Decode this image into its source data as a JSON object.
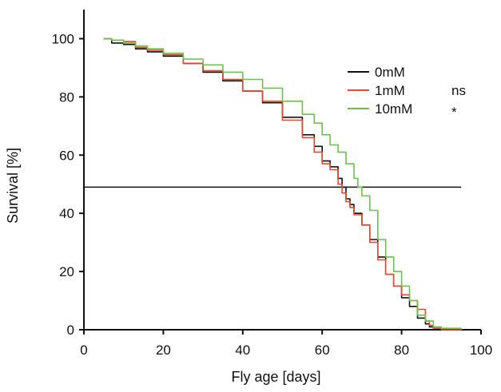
{
  "chart_data": {
    "type": "line",
    "xlabel": "Fly age [days]",
    "ylabel": "Survival [%]",
    "xlim": [
      0,
      100
    ],
    "ylim": [
      0,
      110
    ],
    "xticks": [
      0,
      20,
      40,
      60,
      80,
      100
    ],
    "yticks": [
      0,
      20,
      40,
      60,
      80,
      100
    ],
    "grid": false,
    "legend_position": "top-right",
    "reference_line": {
      "y": 49,
      "x_start": 0,
      "x_end": 95
    },
    "series": [
      {
        "name": "0mM",
        "annotation": "",
        "color": "#111111",
        "x": [
          5,
          7,
          10,
          13,
          16,
          20,
          25,
          30,
          35,
          40,
          45,
          50,
          55,
          58,
          60,
          62,
          64,
          65,
          66,
          67,
          68,
          70,
          72,
          74,
          76,
          78,
          80,
          82,
          84,
          86,
          87,
          88,
          90,
          95
        ],
        "y": [
          100,
          98.5,
          98,
          96.5,
          95.5,
          94,
          91.5,
          88.5,
          85.5,
          82,
          78,
          73,
          67,
          63,
          58,
          56,
          52,
          49,
          45,
          43,
          40,
          36,
          31,
          25,
          19,
          15,
          11,
          8,
          4,
          2,
          1,
          0.5,
          0,
          0
        ]
      },
      {
        "name": "1mM",
        "annotation": "ns",
        "color": "#e8482c",
        "x": [
          5,
          7,
          10,
          13,
          16,
          20,
          25,
          30,
          35,
          40,
          45,
          50,
          55,
          58,
          60,
          62,
          64,
          65,
          66,
          67,
          68,
          70,
          72,
          74,
          76,
          78,
          80,
          82,
          84,
          86,
          87,
          88,
          90,
          95
        ],
        "y": [
          100,
          99.5,
          99,
          97,
          96,
          94.5,
          91.5,
          89,
          86,
          82,
          78.5,
          72,
          66,
          61,
          57,
          55,
          50,
          47,
          44,
          42,
          39.5,
          36,
          30,
          24,
          19,
          15,
          12,
          10,
          7,
          3,
          1.5,
          0.5,
          0,
          0
        ]
      },
      {
        "name": "10mM",
        "annotation": "*",
        "color": "#6cc24a",
        "x": [
          5,
          7,
          10,
          13,
          16,
          20,
          25,
          30,
          35,
          40,
          45,
          50,
          55,
          58,
          60,
          62,
          64,
          66,
          68,
          69,
          70,
          72,
          74,
          76,
          78,
          80,
          82,
          84,
          86,
          88,
          90,
          95
        ],
        "y": [
          100,
          99.5,
          98.5,
          97.5,
          96.5,
          95,
          93,
          91,
          88.5,
          86,
          83,
          78.5,
          74,
          71,
          67,
          63.5,
          61,
          57,
          52,
          49,
          46,
          41,
          31,
          25,
          20,
          15,
          10,
          5,
          3,
          1,
          0.5,
          0
        ]
      }
    ]
  }
}
